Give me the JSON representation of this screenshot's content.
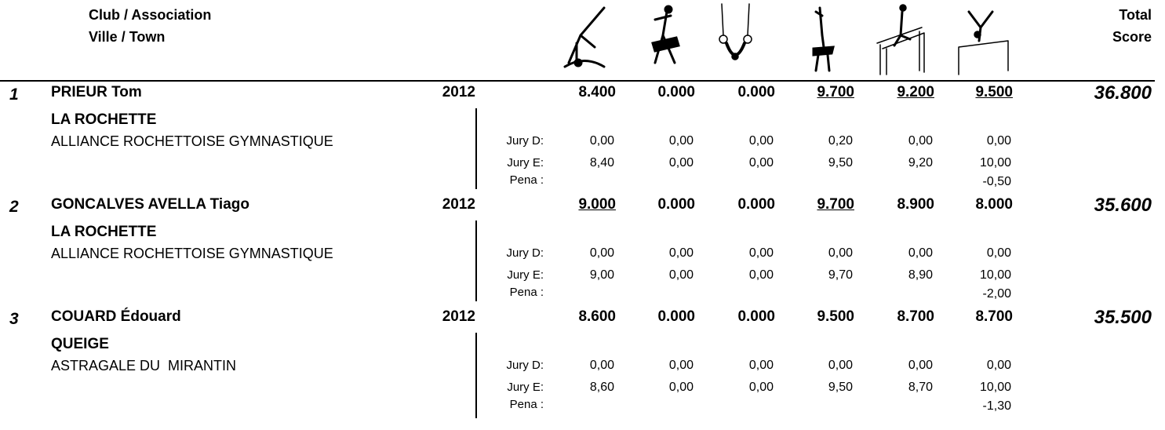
{
  "header": {
    "club_label": "Club / Association",
    "town_label": "Ville / Town",
    "total_label": [
      "Total",
      "Score"
    ]
  },
  "jury_labels": {
    "d": "Jury D:",
    "e": "Jury E:",
    "pena": "Pena :"
  },
  "athletes": [
    {
      "rank": "1",
      "name": "PRIEUR Tom",
      "year": "2012",
      "town": "LA ROCHETTE",
      "club": "ALLIANCE ROCHETTOISE GYMNASTIQUE",
      "scores": [
        "8.400",
        "0.000",
        "0.000",
        "9.700",
        "9.200",
        "9.500"
      ],
      "underlined": [
        false,
        false,
        false,
        true,
        true,
        true
      ],
      "total": "36.800",
      "jury_d": [
        "0,00",
        "0,00",
        "0,00",
        "0,20",
        "0,00",
        "0,00"
      ],
      "jury_e": [
        "8,40",
        "0,00",
        "0,00",
        "9,50",
        "9,20",
        "10,00"
      ],
      "pena": "-0,50"
    },
    {
      "rank": "2",
      "name": "GONCALVES AVELLA Tiago",
      "year": "2012",
      "town": "LA ROCHETTE",
      "club": "ALLIANCE ROCHETTOISE GYMNASTIQUE",
      "scores": [
        "9.000",
        "0.000",
        "0.000",
        "9.700",
        "8.900",
        "8.000"
      ],
      "underlined": [
        true,
        false,
        false,
        true,
        false,
        false
      ],
      "total": "35.600",
      "jury_d": [
        "0,00",
        "0,00",
        "0,00",
        "0,00",
        "0,00",
        "0,00"
      ],
      "jury_e": [
        "9,00",
        "0,00",
        "0,00",
        "9,70",
        "8,90",
        "10,00"
      ],
      "pena": "-2,00"
    },
    {
      "rank": "3",
      "name": "COUARD Édouard",
      "year": "2012",
      "town": "QUEIGE",
      "club": "ASTRAGALE DU  MIRANTIN",
      "scores": [
        "8.600",
        "0.000",
        "0.000",
        "9.500",
        "8.700",
        "8.700"
      ],
      "underlined": [
        false,
        false,
        false,
        false,
        false,
        false
      ],
      "total": "35.500",
      "jury_d": [
        "0,00",
        "0,00",
        "0,00",
        "0,00",
        "0,00",
        "0,00"
      ],
      "jury_e": [
        "8,60",
        "0,00",
        "0,00",
        "9,50",
        "8,70",
        "10,00"
      ],
      "pena": "-1,30"
    }
  ]
}
